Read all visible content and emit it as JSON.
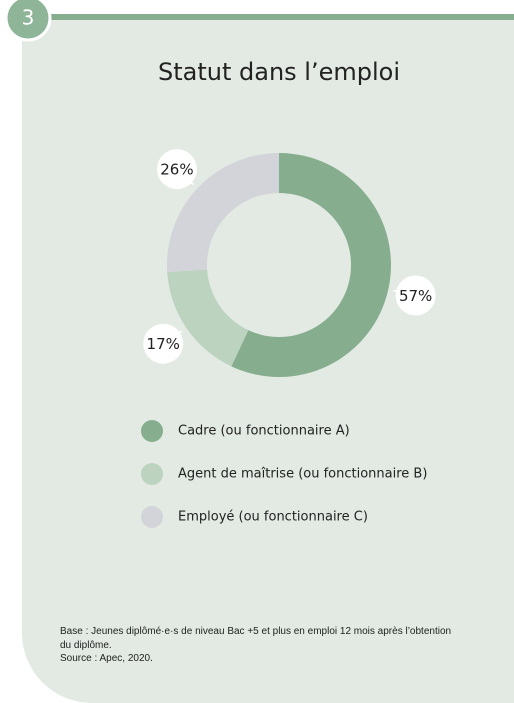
{
  "badge": "3",
  "chart_data": {
    "type": "pie",
    "title": "Statut dans l’emploi",
    "categories": [
      "Cadre (ou fonctionnaire A)",
      "Agent de maîtrise (ou fonctionnaire B)",
      "Employé (ou fonctionnaire C)"
    ],
    "values": [
      57,
      17,
      26
    ],
    "value_labels": [
      "57%",
      "17%",
      "26%"
    ],
    "colors": [
      "#86ad8d",
      "#bcd3c0",
      "#d3d4d9"
    ]
  },
  "notes": [
    "Base : Jeunes diplômé·e·s de niveau Bac +5 et plus en emploi 12 mois après l’obtention du diplôme.",
    "Source : Apec, 2020."
  ]
}
